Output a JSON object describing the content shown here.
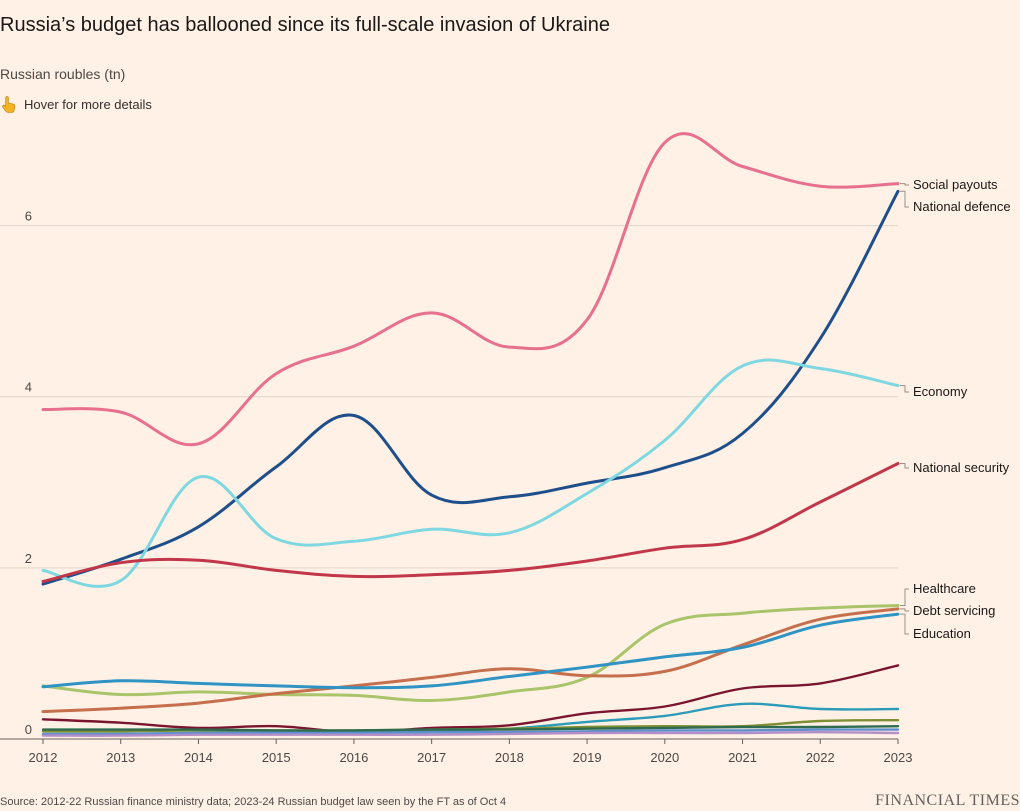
{
  "header": {
    "title": "Russia’s budget has ballooned since its full-scale invasion of Ukraine",
    "subtitle": "Russian roubles (tn)",
    "hint": "Hover for more details"
  },
  "footer": {
    "source": "Source: 2012-22 Russian finance ministry data; 2023-24 Russian budget law seen by the FT as of Oct 4",
    "brand": "FINANCIAL TIMES"
  },
  "chart_data": {
    "type": "line",
    "title": "Russia’s budget has ballooned since its full-scale invasion of Ukraine",
    "ylabel": "Russian roubles (tn)",
    "x": [
      2012,
      2013,
      2014,
      2015,
      2016,
      2017,
      2018,
      2019,
      2020,
      2021,
      2022,
      2023
    ],
    "xlim": [
      2012,
      2023
    ],
    "ylim": [
      0,
      7
    ],
    "y_ticks": [
      0,
      2,
      4,
      6
    ],
    "grid": "horizontal",
    "legend": "direct-labels-right",
    "series": [
      {
        "name": "Social payouts",
        "color": "#e7708e",
        "labelled": true,
        "values": [
          3.85,
          3.82,
          3.45,
          4.27,
          4.59,
          4.98,
          4.58,
          4.9,
          6.97,
          6.69,
          6.46,
          6.49
        ]
      },
      {
        "name": "National defence",
        "color": "#1e4f8a",
        "labelled": true,
        "values": [
          1.81,
          2.1,
          2.48,
          3.18,
          3.78,
          2.85,
          2.83,
          2.99,
          3.17,
          3.57,
          4.68,
          6.4
        ]
      },
      {
        "name": "Economy",
        "color": "#7fd8e1",
        "labelled": true,
        "values": [
          1.97,
          1.85,
          3.06,
          2.34,
          2.31,
          2.45,
          2.41,
          2.87,
          3.49,
          4.36,
          4.33,
          4.13
        ]
      },
      {
        "name": "National security",
        "color": "#c2364a",
        "labelled": true,
        "values": [
          1.84,
          2.06,
          2.09,
          1.97,
          1.9,
          1.92,
          1.97,
          2.08,
          2.23,
          2.33,
          2.77,
          3.22
        ]
      },
      {
        "name": "Healthcare",
        "color": "#a9c46a",
        "labelled": true,
        "values": [
          0.62,
          0.52,
          0.55,
          0.52,
          0.51,
          0.45,
          0.55,
          0.72,
          1.34,
          1.47,
          1.53,
          1.56
        ]
      },
      {
        "name": "Debt servicing",
        "color": "#c56f4d",
        "labelled": true,
        "values": [
          0.32,
          0.36,
          0.42,
          0.53,
          0.62,
          0.72,
          0.82,
          0.74,
          0.79,
          1.1,
          1.4,
          1.52
        ]
      },
      {
        "name": "Education",
        "color": "#2f93c4",
        "labelled": true,
        "values": [
          0.61,
          0.68,
          0.65,
          0.62,
          0.6,
          0.62,
          0.73,
          0.84,
          0.96,
          1.07,
          1.33,
          1.46
        ]
      },
      {
        "color": "#7a1530",
        "labelled": false,
        "values": [
          0.23,
          0.19,
          0.13,
          0.15,
          0.08,
          0.13,
          0.16,
          0.3,
          0.38,
          0.59,
          0.65,
          0.86
        ]
      },
      {
        "color": "#2a9bb8",
        "labelled": false,
        "values": [
          0.05,
          0.06,
          0.07,
          0.08,
          0.08,
          0.1,
          0.12,
          0.2,
          0.27,
          0.41,
          0.35,
          0.35
        ]
      },
      {
        "color": "#7f8e33",
        "labelled": false,
        "values": [
          0.09,
          0.09,
          0.1,
          0.1,
          0.1,
          0.11,
          0.12,
          0.14,
          0.15,
          0.15,
          0.21,
          0.22
        ]
      },
      {
        "color": "#2e6b4f",
        "labelled": false,
        "values": [
          0.11,
          0.11,
          0.11,
          0.1,
          0.1,
          0.11,
          0.11,
          0.12,
          0.13,
          0.14,
          0.14,
          0.15
        ]
      },
      {
        "color": "#5e8fcf",
        "labelled": false,
        "values": [
          0.06,
          0.06,
          0.07,
          0.07,
          0.07,
          0.08,
          0.08,
          0.09,
          0.1,
          0.1,
          0.11,
          0.11
        ]
      },
      {
        "color": "#b48ec6",
        "labelled": false,
        "values": [
          0.04,
          0.04,
          0.05,
          0.05,
          0.05,
          0.05,
          0.06,
          0.07,
          0.07,
          0.07,
          0.08,
          0.07
        ]
      }
    ]
  }
}
